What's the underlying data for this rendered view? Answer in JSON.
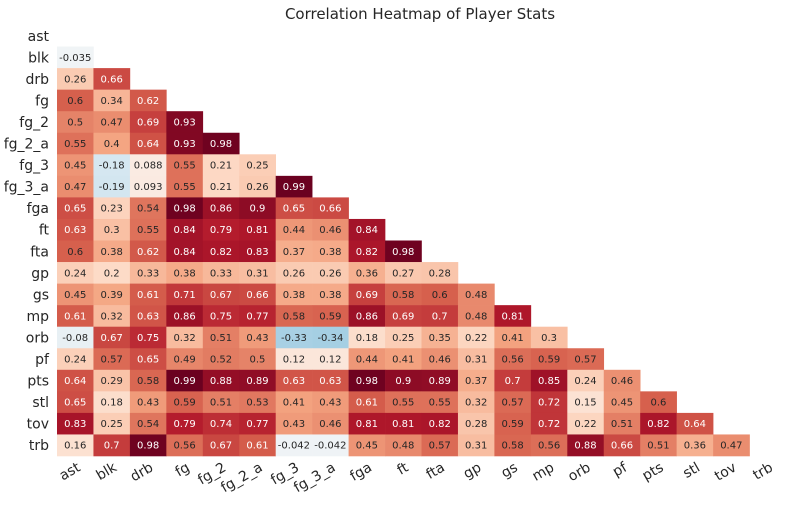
{
  "chart_data": {
    "type": "heatmap",
    "title": "Correlation Heatmap of Player Stats",
    "rows": [
      "ast",
      "blk",
      "drb",
      "fg",
      "fg_2",
      "fg_2_a",
      "fg_3",
      "fg_3_a",
      "fga",
      "ft",
      "fta",
      "gp",
      "gs",
      "mp",
      "orb",
      "pf",
      "pts",
      "stl",
      "tov",
      "trb"
    ],
    "columns": [
      "ast",
      "blk",
      "drb",
      "fg",
      "fg_2",
      "fg_2_a",
      "fg_3",
      "fg_3_a",
      "fga",
      "ft",
      "fta",
      "gp",
      "gs",
      "mp",
      "orb",
      "pf",
      "pts",
      "stl",
      "tov",
      "trb"
    ],
    "mask": "upper-triangle-including-diagonal",
    "colormap": "RdBu_r",
    "vmin": -1,
    "vmax": 1,
    "values": [
      [],
      [
        "-0.035"
      ],
      [
        "0.26",
        "0.66"
      ],
      [
        "0.6",
        "0.34",
        "0.62"
      ],
      [
        "0.5",
        "0.47",
        "0.69",
        "0.93"
      ],
      [
        "0.55",
        "0.4",
        "0.64",
        "0.93",
        "0.98"
      ],
      [
        "0.45",
        "-0.18",
        "0.088",
        "0.55",
        "0.21",
        "0.25"
      ],
      [
        "0.47",
        "-0.19",
        "0.093",
        "0.55",
        "0.21",
        "0.26",
        "0.99"
      ],
      [
        "0.65",
        "0.23",
        "0.54",
        "0.98",
        "0.86",
        "0.9",
        "0.65",
        "0.66"
      ],
      [
        "0.63",
        "0.3",
        "0.55",
        "0.84",
        "0.79",
        "0.81",
        "0.44",
        "0.46",
        "0.84"
      ],
      [
        "0.6",
        "0.38",
        "0.62",
        "0.84",
        "0.82",
        "0.83",
        "0.37",
        "0.38",
        "0.82",
        "0.98"
      ],
      [
        "0.24",
        "0.2",
        "0.33",
        "0.38",
        "0.33",
        "0.31",
        "0.26",
        "0.26",
        "0.36",
        "0.27",
        "0.28"
      ],
      [
        "0.45",
        "0.39",
        "0.61",
        "0.71",
        "0.67",
        "0.66",
        "0.38",
        "0.38",
        "0.69",
        "0.58",
        "0.6",
        "0.48"
      ],
      [
        "0.61",
        "0.32",
        "0.63",
        "0.86",
        "0.75",
        "0.77",
        "0.58",
        "0.59",
        "0.86",
        "0.69",
        "0.7",
        "0.48",
        "0.81"
      ],
      [
        "-0.08",
        "0.67",
        "0.75",
        "0.32",
        "0.51",
        "0.43",
        "-0.33",
        "-0.34",
        "0.18",
        "0.25",
        "0.35",
        "0.22",
        "0.41",
        "0.3"
      ],
      [
        "0.24",
        "0.57",
        "0.65",
        "0.49",
        "0.52",
        "0.5",
        "0.12",
        "0.12",
        "0.44",
        "0.41",
        "0.46",
        "0.31",
        "0.56",
        "0.59",
        "0.57"
      ],
      [
        "0.64",
        "0.29",
        "0.58",
        "0.99",
        "0.88",
        "0.89",
        "0.63",
        "0.63",
        "0.98",
        "0.9",
        "0.89",
        "0.37",
        "0.7",
        "0.85",
        "0.24",
        "0.46"
      ],
      [
        "0.65",
        "0.18",
        "0.43",
        "0.59",
        "0.51",
        "0.53",
        "0.41",
        "0.43",
        "0.61",
        "0.55",
        "0.55",
        "0.32",
        "0.57",
        "0.72",
        "0.15",
        "0.45",
        "0.6"
      ],
      [
        "0.83",
        "0.25",
        "0.54",
        "0.79",
        "0.74",
        "0.77",
        "0.43",
        "0.46",
        "0.81",
        "0.81",
        "0.82",
        "0.28",
        "0.59",
        "0.72",
        "0.22",
        "0.51",
        "0.82",
        "0.64"
      ],
      [
        "0.16",
        "0.7",
        "0.98",
        "0.56",
        "0.67",
        "0.61",
        "-0.042",
        "-0.042",
        "0.45",
        "0.48",
        "0.57",
        "0.31",
        "0.58",
        "0.56",
        "0.88",
        "0.66",
        "0.51",
        "0.36",
        "0.47"
      ]
    ]
  }
}
